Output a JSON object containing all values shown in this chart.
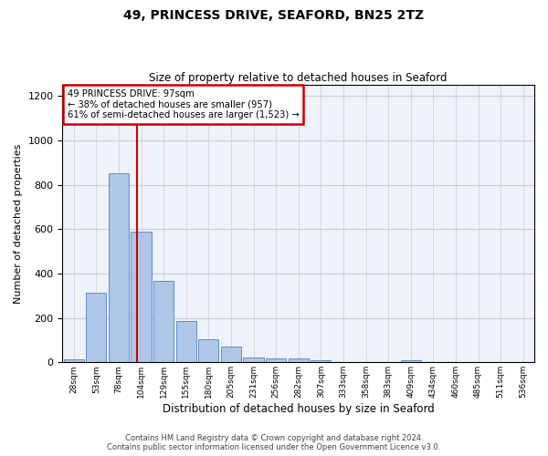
{
  "title_line1": "49, PRINCESS DRIVE, SEAFORD, BN25 2TZ",
  "title_line2": "Size of property relative to detached houses in Seaford",
  "xlabel": "Distribution of detached houses by size in Seaford",
  "ylabel": "Number of detached properties",
  "bar_labels": [
    "28sqm",
    "53sqm",
    "78sqm",
    "104sqm",
    "129sqm",
    "155sqm",
    "180sqm",
    "205sqm",
    "231sqm",
    "256sqm",
    "282sqm",
    "307sqm",
    "333sqm",
    "358sqm",
    "383sqm",
    "409sqm",
    "434sqm",
    "460sqm",
    "485sqm",
    "511sqm",
    "536sqm"
  ],
  "bar_values": [
    15,
    315,
    850,
    590,
    365,
    185,
    105,
    70,
    20,
    17,
    17,
    10,
    0,
    0,
    0,
    10,
    0,
    0,
    0,
    0,
    0
  ],
  "bar_color": "#aec6e8",
  "bar_edge_color": "#5b8fc9",
  "annotation_line1": "49 PRINCESS DRIVE: 97sqm",
  "annotation_line2": "← 38% of detached houses are smaller (957)",
  "annotation_line3": "61% of semi-detached houses are larger (1,523) →",
  "vline_color": "#cc0000",
  "vline_bin_index": 2.82,
  "annotation_box_edge": "#cc0000",
  "footer_line1": "Contains HM Land Registry data © Crown copyright and database right 2024.",
  "footer_line2": "Contains public sector information licensed under the Open Government Licence v3.0.",
  "ylim": [
    0,
    1250
  ],
  "yticks": [
    0,
    200,
    400,
    600,
    800,
    1000,
    1200
  ],
  "grid_color": "#cccccc",
  "bg_color": "#eef2fa"
}
